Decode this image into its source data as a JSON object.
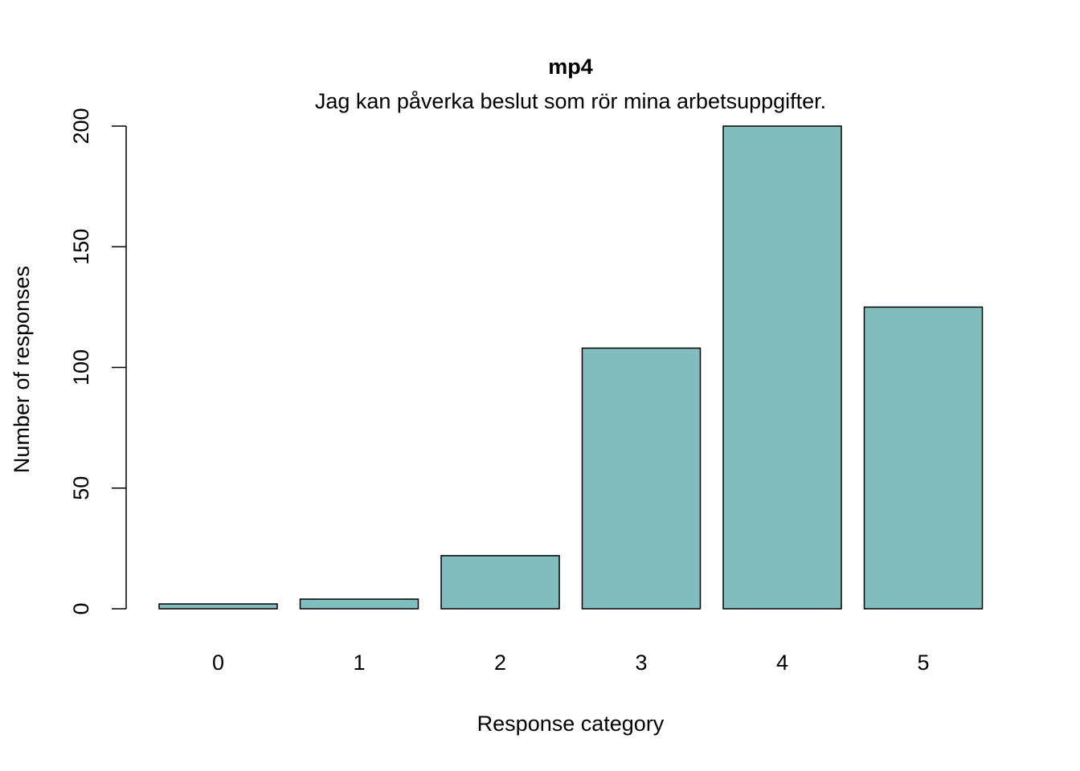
{
  "chart_data": {
    "type": "bar",
    "title": "mp4",
    "subtitle": "Jag kan påverka beslut som rör mina arbetsuppgifter.",
    "xlabel": "Response category",
    "ylabel": "Number of responses",
    "categories": [
      "0",
      "1",
      "2",
      "3",
      "4",
      "5"
    ],
    "values": [
      2,
      4,
      22,
      108,
      200,
      125
    ],
    "ylim": [
      0,
      200
    ],
    "yticks": [
      0,
      50,
      100,
      150,
      200
    ],
    "bar_color": "#80BDBC",
    "grid": false,
    "legend": "none"
  }
}
